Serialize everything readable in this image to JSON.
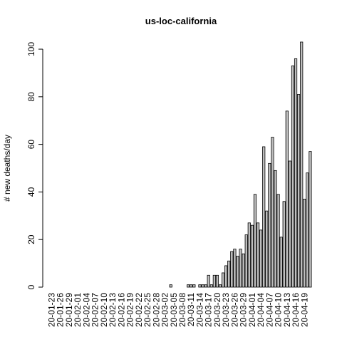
{
  "chart_data": {
    "type": "bar",
    "title": "us-loc-california",
    "y_label": "# new deaths/day",
    "categories": [
      "20-01-23",
      null,
      null,
      "20-01-26",
      null,
      null,
      "20-01-29",
      null,
      null,
      "20-02-01",
      null,
      null,
      "20-02-04",
      null,
      null,
      "20-02-07",
      null,
      null,
      "20-02-10",
      null,
      null,
      "20-02-13",
      null,
      null,
      "20-02-16",
      null,
      null,
      "20-02-19",
      null,
      null,
      "20-02-22",
      null,
      null,
      "20-02-25",
      null,
      null,
      "20-02-28",
      null,
      null,
      "20-03-02",
      null,
      null,
      "20-03-05",
      null,
      null,
      "20-03-08",
      null,
      null,
      "20-03-11",
      null,
      null,
      "20-03-14",
      null,
      null,
      "20-03-17",
      null,
      null,
      "20-03-20",
      null,
      null,
      "20-03-23",
      null,
      null,
      "20-03-26",
      null,
      null,
      "20-03-29",
      null,
      null,
      "20-04-01",
      null,
      null,
      "20-04-04",
      null,
      null,
      "20-04-07",
      null,
      null,
      "20-04-10",
      null,
      null,
      "20-04-13",
      null,
      null,
      "20-04-16",
      null,
      null,
      "20-04-19",
      null,
      null
    ],
    "values": [
      0,
      0,
      0,
      0,
      0,
      0,
      0,
      0,
      0,
      0,
      0,
      0,
      0,
      0,
      0,
      0,
      0,
      0,
      0,
      0,
      0,
      0,
      0,
      0,
      0,
      0,
      0,
      0,
      0,
      0,
      0,
      0,
      0,
      0,
      0,
      0,
      0,
      0,
      0,
      0,
      0,
      1,
      0,
      0,
      0,
      0,
      0,
      1,
      1,
      1,
      0,
      1,
      1,
      1,
      5,
      1,
      5,
      5,
      1,
      6,
      9,
      11,
      15,
      16,
      13,
      16,
      14,
      22,
      27,
      26,
      39,
      27,
      24,
      59,
      32,
      52,
      63,
      49,
      39,
      21,
      36,
      74,
      53,
      93,
      96,
      81,
      103,
      37,
      48,
      57
    ],
    "color": "#bebebe",
    "ylim": [
      0,
      103
    ],
    "yticks": [
      0,
      20,
      40,
      60,
      80,
      100
    ]
  }
}
